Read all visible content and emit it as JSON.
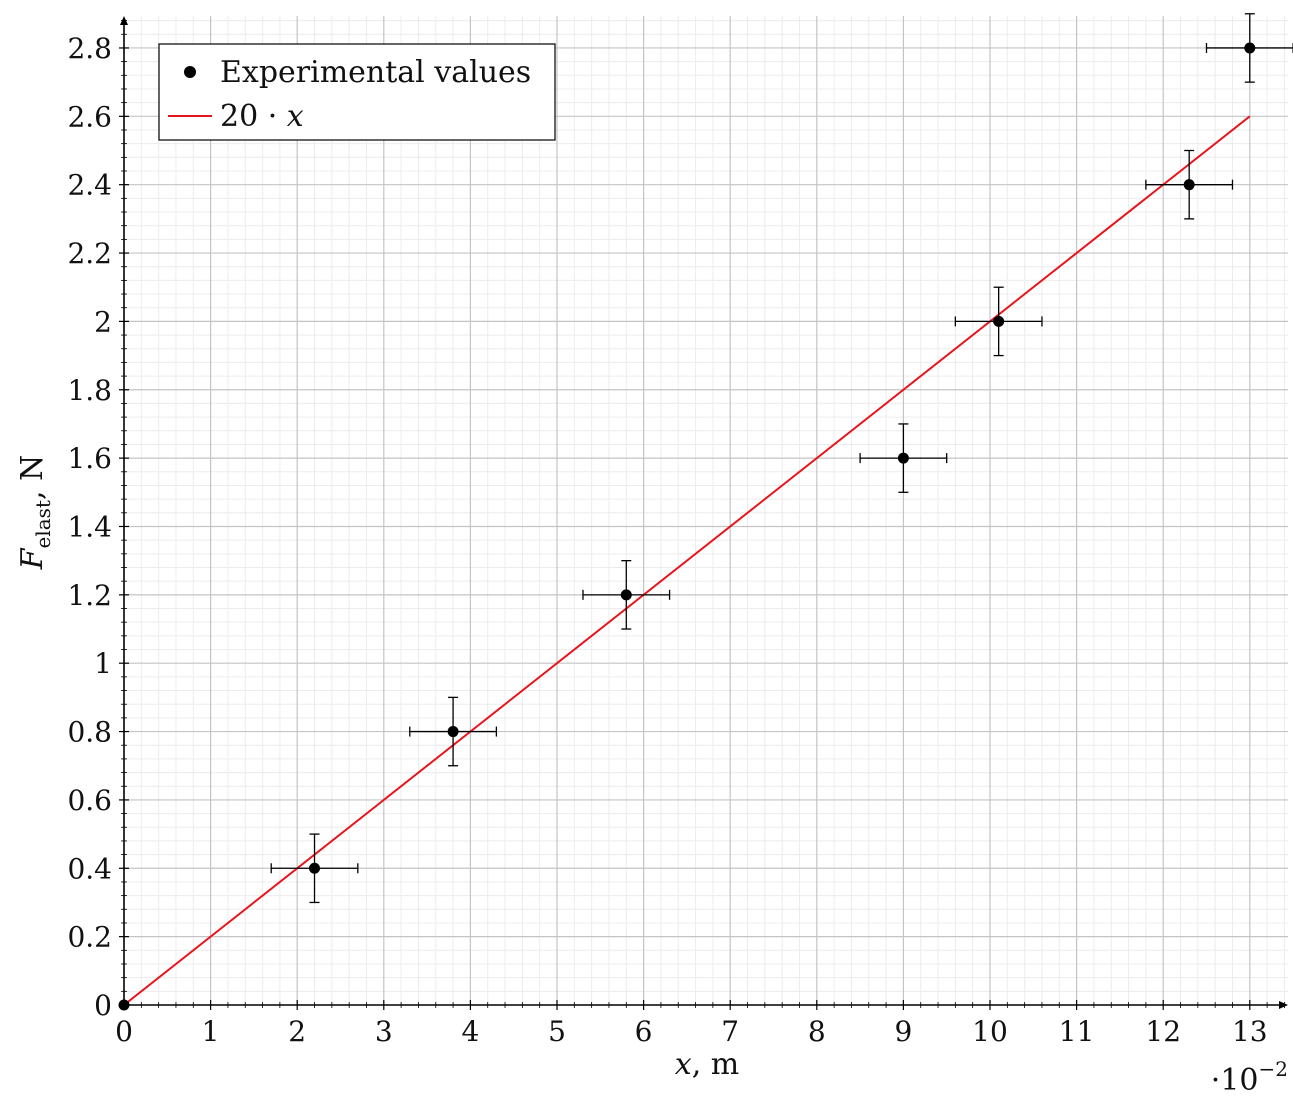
{
  "chart_data": {
    "type": "scatter",
    "xlabel": {
      "var": "x",
      "unit": ", m"
    },
    "ylabel": {
      "var": "F",
      "sub": "elast",
      "unit": ", N"
    },
    "x_scale_note": {
      "base": "·10",
      "exp": "−2"
    },
    "xlim": [
      0,
      13.5
    ],
    "ylim": [
      0,
      2.9
    ],
    "x_ticks": [
      "0",
      "1",
      "2",
      "3",
      "4",
      "5",
      "6",
      "7",
      "8",
      "9",
      "10",
      "11",
      "12",
      "13"
    ],
    "y_ticks": [
      "0",
      "0.2",
      "0.4",
      "0.6",
      "0.8",
      "1",
      "1.2",
      "1.4",
      "1.6",
      "1.8",
      "2",
      "2.2",
      "2.4",
      "2.6",
      "2.8"
    ],
    "grid": true,
    "legend_position": "top-left",
    "series": [
      {
        "name": "Experimental values",
        "kind": "points-with-error-bars",
        "color": "#000000",
        "points": [
          {
            "x": 0,
            "y": 0,
            "xerr": 0,
            "yerr": 0
          },
          {
            "x": 2.2,
            "y": 0.4,
            "xerr": 0.5,
            "yerr": 0.1
          },
          {
            "x": 3.8,
            "y": 0.8,
            "xerr": 0.5,
            "yerr": 0.1
          },
          {
            "x": 5.8,
            "y": 1.2,
            "xerr": 0.5,
            "yerr": 0.1
          },
          {
            "x": 9.0,
            "y": 1.6,
            "xerr": 0.5,
            "yerr": 0.1
          },
          {
            "x": 10.1,
            "y": 2.0,
            "xerr": 0.5,
            "yerr": 0.1
          },
          {
            "x": 12.3,
            "y": 2.4,
            "xerr": 0.5,
            "yerr": 0.1
          },
          {
            "x": 13.0,
            "y": 2.8,
            "xerr": 0.5,
            "yerr": 0.1
          }
        ]
      },
      {
        "name": "20 · x",
        "legend_label": {
          "coef": "20 · ",
          "var": "x"
        },
        "kind": "line",
        "color": "#e8141b",
        "points": [
          {
            "x": 0,
            "y": 0
          },
          {
            "x": 13,
            "y": 2.6
          }
        ]
      }
    ]
  }
}
